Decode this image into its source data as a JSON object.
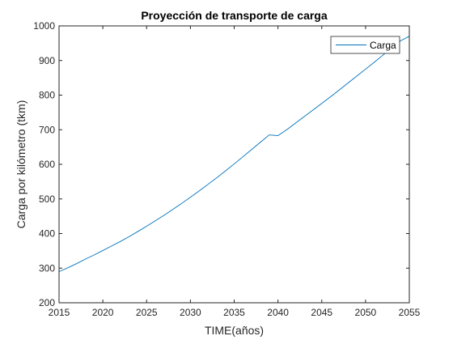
{
  "chart_data": {
    "type": "line",
    "title": "Proyección de transporte de carga",
    "xlabel": "TIME(años)",
    "ylabel": "Carga por kilómetro (tkm)",
    "xlim": [
      2015,
      2055
    ],
    "ylim": [
      200,
      1000
    ],
    "xticks": [
      2015,
      2020,
      2025,
      2030,
      2035,
      2040,
      2045,
      2050,
      2055
    ],
    "yticks": [
      200,
      300,
      400,
      500,
      600,
      700,
      800,
      900,
      1000
    ],
    "grid": false,
    "legend_position": "top-right",
    "series": [
      {
        "name": "Carga",
        "color": "#0072BD",
        "x": [
          2015,
          2016,
          2017,
          2018,
          2019,
          2020,
          2021,
          2022,
          2023,
          2024,
          2025,
          2026,
          2027,
          2028,
          2029,
          2030,
          2031,
          2032,
          2033,
          2034,
          2035,
          2036,
          2037,
          2038,
          2039,
          2040,
          2041,
          2042,
          2043,
          2044,
          2045,
          2046,
          2047,
          2048,
          2049,
          2050,
          2051,
          2052,
          2053,
          2054,
          2055
        ],
        "y": [
          290,
          301,
          313,
          326,
          338,
          351,
          364,
          377,
          391,
          406,
          421,
          437,
          453,
          470,
          487,
          505,
          523,
          542,
          561,
          581,
          601,
          622,
          643,
          664,
          685,
          683,
          700,
          719,
          738,
          757,
          776,
          795,
          815,
          835,
          855,
          875,
          895,
          916,
          937,
          957,
          970
        ]
      }
    ]
  }
}
